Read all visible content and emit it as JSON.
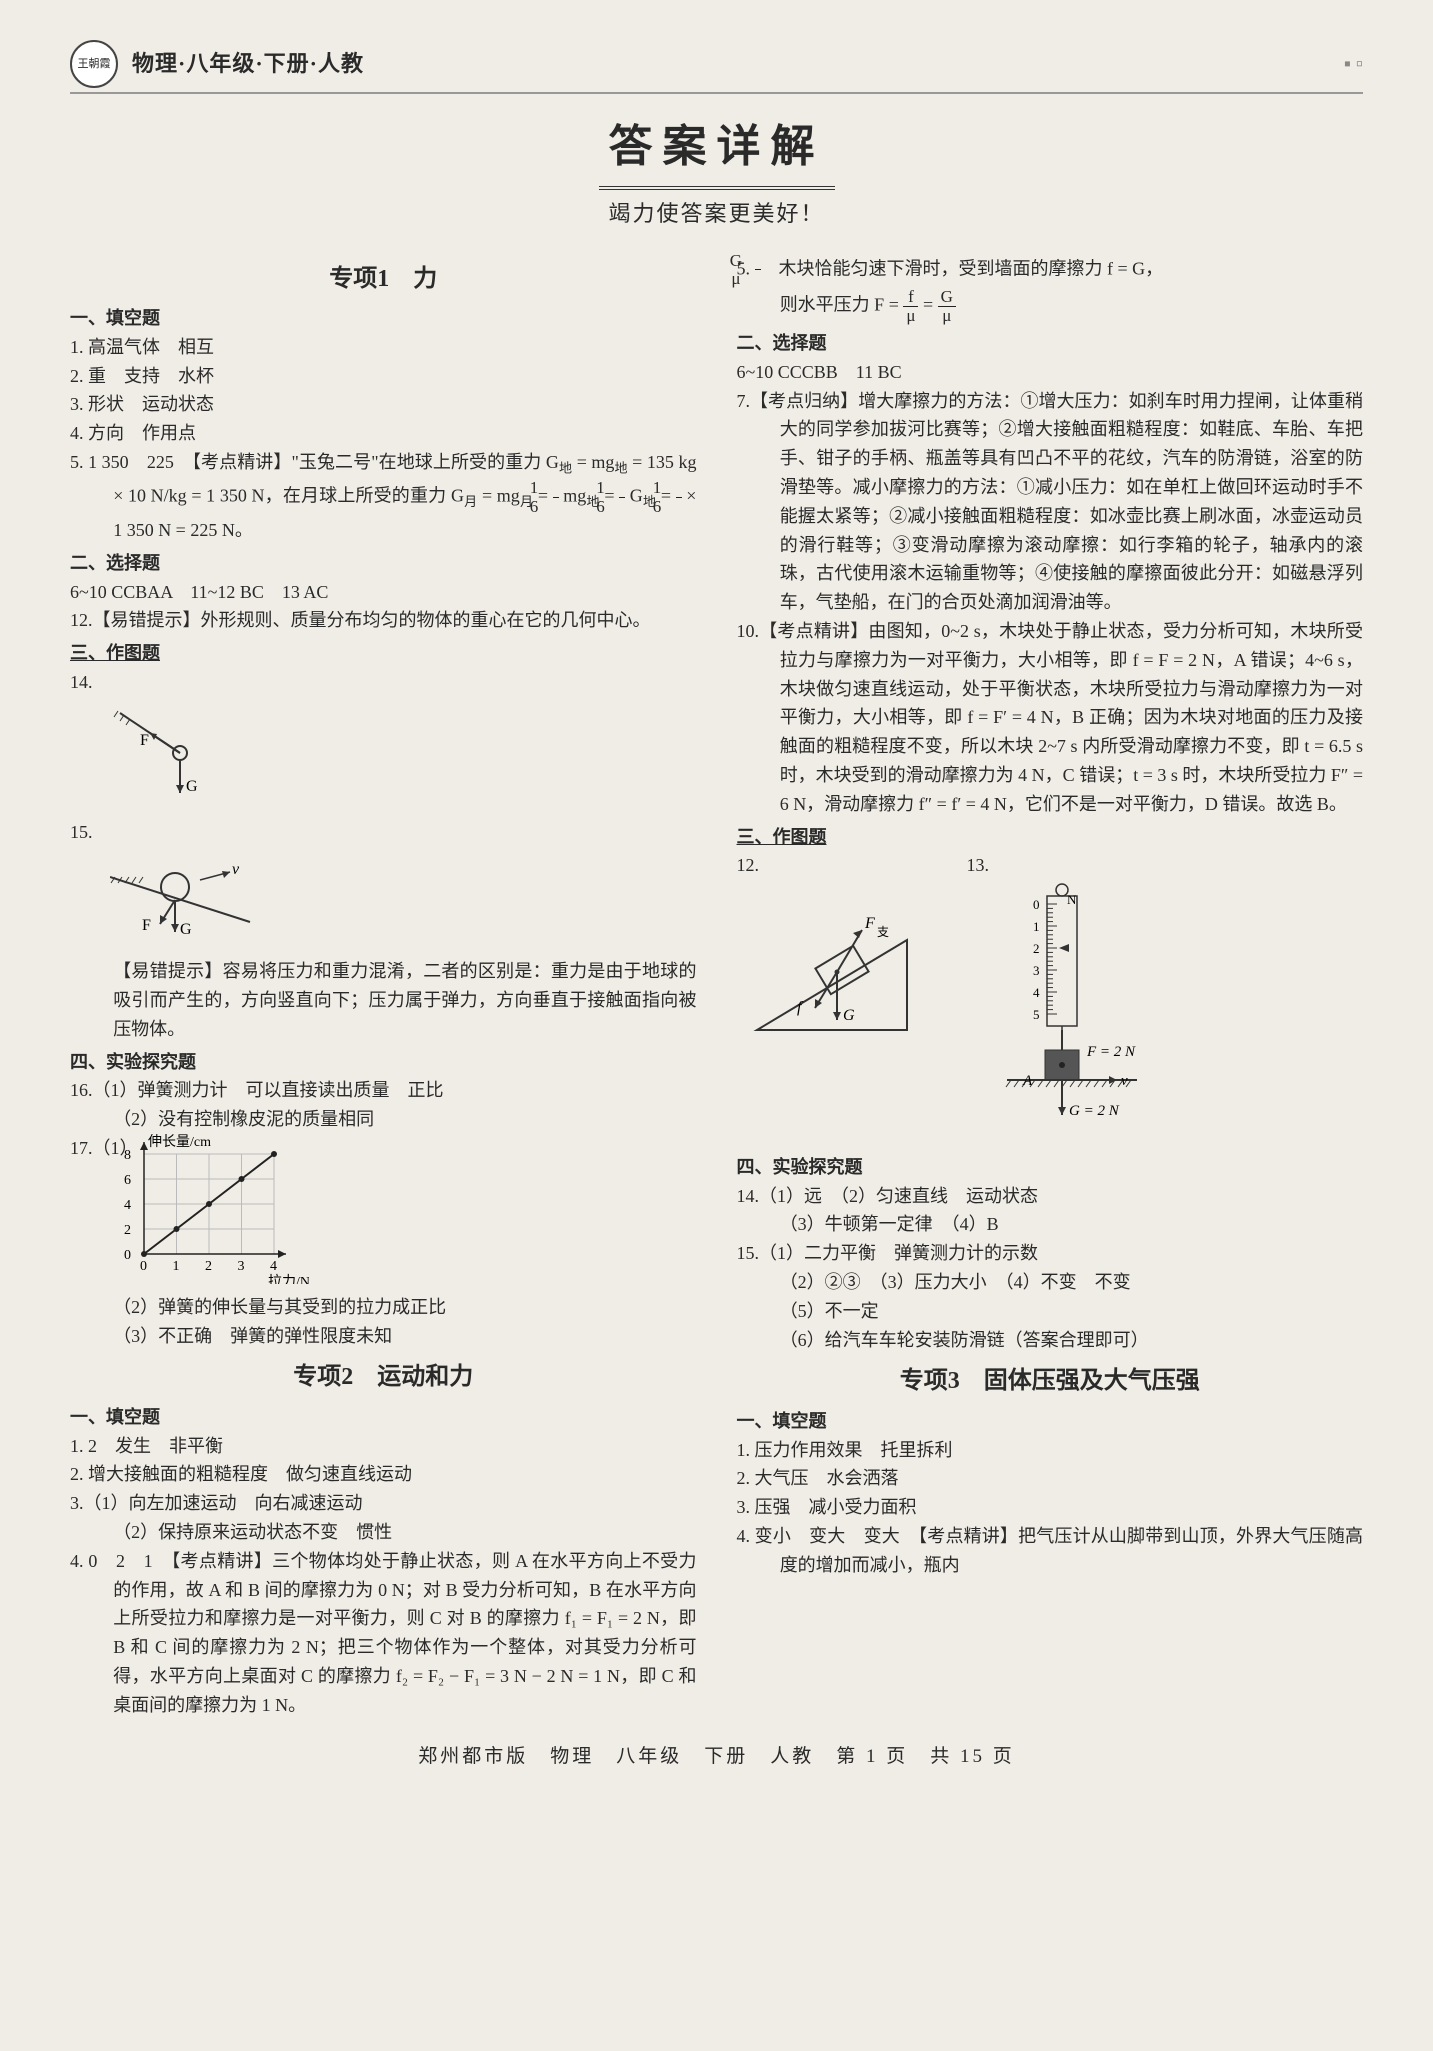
{
  "header": {
    "logo_text": "王朝霞",
    "book_title": "物理·八年级·下册·人教"
  },
  "title": "答案详解",
  "subtitle": "竭力使答案更美好！",
  "colors": {
    "page_bg": "#f0ede6",
    "text": "#2a2a2a",
    "rule": "#999999",
    "diagram_stroke": "#333333"
  },
  "left": {
    "sec1_title": "专项1　力",
    "cat1": "一、填空题",
    "q1": "1. 高温气体　相互",
    "q2": "2. 重　支持　水杯",
    "q3": "3. 形状　运动状态",
    "q4": "4. 方向　作用点",
    "q5a": "5. 1 350　225　【考点精讲】\"玉兔二号\"在地球上所受的重力 G",
    "q5a_sub1": "地",
    "q5a_2": " = mg",
    "q5a_sub2": "地",
    "q5a_3": " = 135 kg × 10 N/kg = 1 350 N，在月球上所受的重力 G",
    "q5a_sub3": "月",
    "q5a_4": " = mg",
    "q5a_sub4": "月",
    "q5a_5": " = ",
    "q5a_6": " mg",
    "q5a_sub5": "地",
    "q5a_7": " = ",
    "q5a_8": " G",
    "q5a_sub6": "地",
    "q5a_9": " = ",
    "q5a_10": " × 1 350 N = 225 N。",
    "frac16_n": "1",
    "frac16_d": "6",
    "cat2": "二、选择题",
    "mc1": "6~10 CCBAA　11~12 BC　13 AC",
    "q12": "12.【易错提示】外形规则、质量分布均匀的物体的重心在它的几何中心。",
    "cat3": "三、作图题",
    "q14": "14.",
    "q15": "15.",
    "diag14": {
      "F_label": "F",
      "G_label": "G"
    },
    "diag15": {
      "F_label": "F",
      "G_label": "G",
      "v_label": "v"
    },
    "q15_note": "【易错提示】容易将压力和重力混淆，二者的区别是：重力是由于地球的吸引而产生的，方向竖直向下；压力属于弹力，方向垂直于接触面指向被压物体。",
    "cat4": "四、实验探究题",
    "q16_1": "16.（1）弹簧测力计　可以直接读出质量　正比",
    "q16_2": "（2）没有控制橡皮泥的质量相同",
    "q17_1": "17.（1）",
    "chart17": {
      "y_label": "伸长量/cm",
      "x_label": "拉力/N",
      "x_ticks": [
        0,
        1,
        2,
        3,
        4
      ],
      "y_ticks": [
        0,
        2,
        4,
        6,
        8
      ],
      "points": [
        [
          0,
          0
        ],
        [
          1,
          2
        ],
        [
          2,
          4
        ],
        [
          3,
          6
        ],
        [
          4,
          8
        ]
      ],
      "grid_color": "#bbbbbb",
      "line_color": "#222222"
    },
    "q17_2": "（2）弹簧的伸长量与其受到的拉力成正比",
    "q17_3": "（3）不正确　弹簧的弹性限度未知",
    "sec2_title": "专项2　运动和力",
    "s2_cat1": "一、填空题",
    "s2_q1": "1. 2　发生　非平衡",
    "s2_q2": "2. 增大接触面的粗糙程度　做匀速直线运动",
    "s2_q3_1": "3.（1）向左加速运动　向右减速运动",
    "s2_q3_2": "（2）保持原来运动状态不变　惯性",
    "s2_q4": "4. 0　2　1　【考点精讲】三个物体均处于静止状态，则 A 在水平方向上不受力的作用，故 A 和 B 间的摩擦力为 0 N；对 B 受力分析可知，B 在水平方向上所受拉力和摩擦力是一对平衡力，则 C 对 B 的摩擦力 f₁ = F₁ = 2 N，即 B 和 C 间的摩擦力为 2 N；把三个物体作为一个整体，对其受力分析可得，水平方向上桌面对 C 的摩擦力 f₂ = F₂ − F₁ = 3 N − 2 N = 1 N，即 C 和桌面间的摩擦力为 1 N。"
  },
  "right": {
    "q5_pre": "5. ",
    "fracGmu_n": "G",
    "fracGmu_d": "μ",
    "q5_a": "　木块恰能匀速下滑时，受到墙面的摩擦力 f = G，",
    "q5_b": "则水平压力 F = ",
    "fracfmu_n": "f",
    "fracfmu_d": "μ",
    "q5_c": " = ",
    "cat2": "二、选择题",
    "mc": "6~10 CCCBB　11 BC",
    "q7": "7.【考点归纳】增大摩擦力的方法：①增大压力：如刹车时用力捏闸，让体重稍大的同学参加拔河比赛等；②增大接触面粗糙程度：如鞋底、车胎、车把手、钳子的手柄、瓶盖等具有凹凸不平的花纹，汽车的防滑链，浴室的防滑垫等。减小摩擦力的方法：①减小压力：如在单杠上做回环运动时手不能握太紧等；②减小接触面粗糙程度：如冰壶比赛上刷冰面，冰壶运动员的滑行鞋等；③变滑动摩擦为滚动摩擦：如行李箱的轮子，轴承内的滚珠，古代使用滚木运输重物等；④使接触的摩擦面彼此分开：如磁悬浮列车，气垫船，在门的合页处滴加润滑油等。",
    "q10": "10.【考点精讲】由图知，0~2 s，木块处于静止状态，受力分析可知，木块所受拉力与摩擦力为一对平衡力，大小相等，即 f = F = 2 N，A 错误；4~6 s，木块做匀速直线运动，处于平衡状态，木块所受拉力与滑动摩擦力为一对平衡力，大小相等，即 f = F′ = 4 N，B 正确；因为木块对地面的压力及接触面的粗糙程度不变，所以木块 2~7 s 内所受滑动摩擦力不变，即 t = 6.5 s 时，木块受到的滑动摩擦力为 4 N，C 错误；t = 3 s 时，木块所受拉力 F″ = 6 N，滑动摩擦力 f″ = f′ = 4 N，它们不是一对平衡力，D 错误。故选 B。",
    "cat3": "三、作图题",
    "q12": "12.",
    "q13": "13.",
    "diag12": {
      "F_label": "F",
      "G_label": "G",
      "sub": "支"
    },
    "diag13": {
      "scale_ticks": [
        0,
        1,
        2,
        3,
        4,
        5
      ],
      "unit": "N",
      "F_label": "F = 2 N",
      "G_label": "G = 2 N",
      "v_label": "v",
      "A_label": "A"
    },
    "cat4": "四、实验探究题",
    "q14_1": "14.（1）远　（2）匀速直线　运动状态",
    "q14_2": "（3）牛顿第一定律　（4）B",
    "q15_1": "15.（1）二力平衡　弹簧测力计的示数",
    "q15_2": "（2）②③　（3）压力大小　（4）不变　不变",
    "q15_3": "（5）不一定",
    "q15_4": "（6）给汽车车轮安装防滑链（答案合理即可）",
    "sec3_title": "专项3　固体压强及大气压强",
    "s3_cat1": "一、填空题",
    "s3_q1": "1. 压力作用效果　托里拆利",
    "s3_q2": "2. 大气压　水会洒落",
    "s3_q3": "3. 压强　减小受力面积",
    "s3_q4": "4. 变小　变大　变大　【考点精讲】把气压计从山脚带到山顶，外界大气压随高度的增加而减小，瓶内"
  },
  "footer": "郑州都市版　物理　八年级　下册　人教　第 1 页　共 15 页"
}
